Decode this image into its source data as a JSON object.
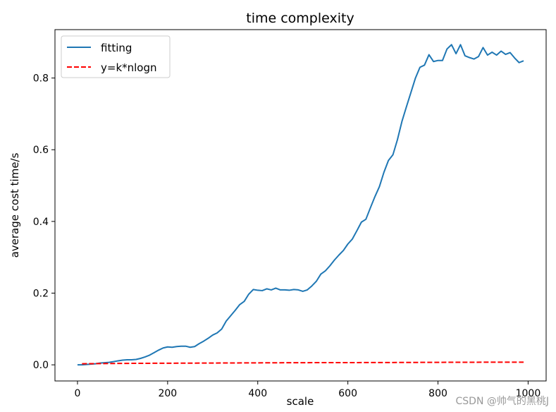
{
  "chart_data": {
    "type": "line",
    "title": "time complexity",
    "xlabel": "scale",
    "ylabel": "average cost time/s",
    "xlim": [
      -50,
      1040
    ],
    "ylim": [
      -0.045,
      0.935
    ],
    "xticks": [
      0,
      200,
      400,
      600,
      800,
      1000
    ],
    "yticks": [
      0.0,
      0.2,
      0.4,
      0.6,
      0.8
    ],
    "xtick_labels": [
      "0",
      "200",
      "400",
      "600",
      "800",
      "1000"
    ],
    "ytick_labels": [
      "0.0",
      "0.2",
      "0.4",
      "0.6",
      "0.8"
    ],
    "grid": false,
    "legend_position": "top-left",
    "series": [
      {
        "name": "fitting",
        "color": "#1f77b4",
        "style": "solid",
        "x": [
          0,
          10,
          20,
          30,
          40,
          50,
          60,
          70,
          80,
          90,
          100,
          110,
          120,
          130,
          140,
          150,
          160,
          170,
          180,
          190,
          200,
          210,
          220,
          230,
          240,
          250,
          260,
          270,
          280,
          290,
          300,
          310,
          320,
          330,
          340,
          350,
          360,
          370,
          380,
          390,
          400,
          410,
          420,
          430,
          440,
          450,
          460,
          470,
          480,
          490,
          500,
          510,
          520,
          530,
          540,
          550,
          560,
          570,
          580,
          590,
          600,
          610,
          620,
          630,
          640,
          650,
          660,
          670,
          680,
          690,
          700,
          710,
          720,
          730,
          740,
          750,
          760,
          770,
          780,
          790,
          800,
          810,
          820,
          830,
          840,
          850,
          860,
          870,
          880,
          890,
          900,
          910,
          920,
          930,
          940,
          950,
          960,
          970,
          980,
          990
        ],
        "y": [
          0.0,
          0.0,
          0.001,
          0.002,
          0.003,
          0.005,
          0.006,
          0.007,
          0.009,
          0.011,
          0.013,
          0.014,
          0.014,
          0.015,
          0.018,
          0.022,
          0.027,
          0.034,
          0.041,
          0.047,
          0.05,
          0.049,
          0.051,
          0.052,
          0.052,
          0.049,
          0.051,
          0.059,
          0.066,
          0.074,
          0.083,
          0.089,
          0.1,
          0.122,
          0.137,
          0.152,
          0.168,
          0.177,
          0.197,
          0.21,
          0.208,
          0.207,
          0.212,
          0.209,
          0.214,
          0.209,
          0.209,
          0.208,
          0.21,
          0.209,
          0.205,
          0.209,
          0.22,
          0.233,
          0.253,
          0.262,
          0.276,
          0.292,
          0.306,
          0.319,
          0.337,
          0.351,
          0.374,
          0.398,
          0.406,
          0.438,
          0.469,
          0.497,
          0.537,
          0.57,
          0.586,
          0.628,
          0.679,
          0.72,
          0.76,
          0.8,
          0.83,
          0.836,
          0.865,
          0.846,
          0.849,
          0.849,
          0.881,
          0.893,
          0.868,
          0.893,
          0.862,
          0.857,
          0.853,
          0.86,
          0.885,
          0.864,
          0.872,
          0.864,
          0.875,
          0.866,
          0.871,
          0.856,
          0.843,
          0.848
        ]
      },
      {
        "name": "y=k*nlogn",
        "color": "#ff0000",
        "style": "dashed",
        "x": [
          10,
          100,
          200,
          300,
          400,
          500,
          600,
          700,
          800,
          900,
          990
        ],
        "y": [
          0.003,
          0.004,
          0.0045,
          0.005,
          0.0055,
          0.006,
          0.0062,
          0.0065,
          0.007,
          0.0073,
          0.0075
        ]
      }
    ]
  },
  "watermark": "CSDN @帅气的黑桃J"
}
